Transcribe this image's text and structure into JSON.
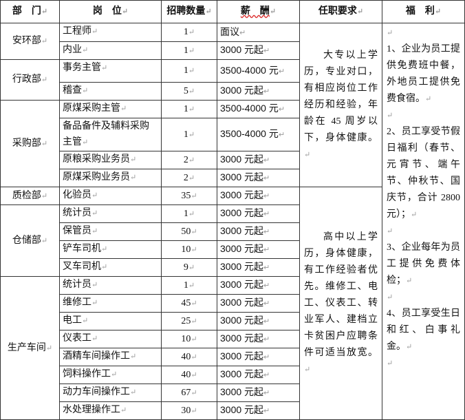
{
  "headers": [
    "部　门",
    "岗　位",
    "招聘数量",
    "薪　酬",
    "任职要求",
    "福　利"
  ],
  "departments": [
    {
      "name": "安环部",
      "rows": [
        {
          "post": "工程师",
          "count": "1",
          "salary": "面议"
        },
        {
          "post": "内业",
          "count": "1",
          "salary": "3000 元起"
        }
      ]
    },
    {
      "name": "行政部",
      "rows": [
        {
          "post": "事务主管",
          "count": "1",
          "salary": "3500-4000 元"
        },
        {
          "post": "稽查",
          "count": "5",
          "salary": "3000 元起"
        }
      ]
    },
    {
      "name": "采购部",
      "rows": [
        {
          "post": "原煤采购主管",
          "count": "1",
          "salary": "3500-4000 元"
        },
        {
          "post": "备品备件及辅料采购主管",
          "count": "1",
          "salary": "3500-4000 元"
        },
        {
          "post": "原粮采购业务员",
          "count": "2",
          "salary": "3000 元起"
        },
        {
          "post": "原煤采购业务员",
          "count": "2",
          "salary": "3000 元起"
        }
      ]
    },
    {
      "name": "质检部",
      "rows": [
        {
          "post": "化验员",
          "count": "35",
          "salary": "3000 元起"
        }
      ]
    },
    {
      "name": "仓储部",
      "rows": [
        {
          "post": "统计员",
          "count": "1",
          "salary": "3000 元起"
        },
        {
          "post": "保管员",
          "count": "50",
          "salary": "3000 元起"
        },
        {
          "post": "铲车司机",
          "count": "10",
          "salary": "3000 元起"
        },
        {
          "post": "叉车司机",
          "count": "9",
          "salary": "3000 元起"
        }
      ]
    },
    {
      "name": "生产车间",
      "rows": [
        {
          "post": "统计员",
          "count": "1",
          "salary": "3000 元起"
        },
        {
          "post": "维修工",
          "count": "45",
          "salary": "3000 元起"
        },
        {
          "post": "电工",
          "count": "25",
          "salary": "3000 元起"
        },
        {
          "post": "仪表工",
          "count": "10",
          "salary": "3000 元起"
        },
        {
          "post": "酒精车间操作工",
          "count": "40",
          "salary": "3000 元起"
        },
        {
          "post": "饲料操作工",
          "count": "40",
          "salary": "3000 元起"
        },
        {
          "post": "动力车间操作工",
          "count": "67",
          "salary": "3000 元起"
        },
        {
          "post": "水处理操作工",
          "count": "30",
          "salary": "3000 元起"
        }
      ]
    }
  ],
  "requirements": [
    "大专以上学历，专业对口，有相应岗位工作经历和经验，年龄在 45 周岁以下，身体健康。",
    "高中以上学历，身体健康，有工作经验者优先。维修工、电工、仪表工、转业军人、建档立卡贫困户应聘条件可适当放宽。"
  ],
  "benefits": [
    "1、企业为员工提供免费班中餐，外地员工提供免费食宿。",
    "2、员工享受节假日福利（春节、元宵节、端午节、仲秋节、国庆节，合计 2800 元）；",
    "3、企业每年为员工提供免费体检；",
    "4、员工享受生日和红、白事礼金。"
  ]
}
